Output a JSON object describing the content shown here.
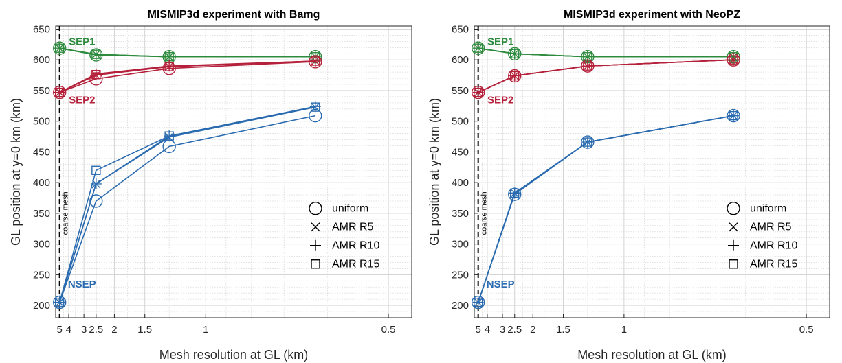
{
  "colors": {
    "green": "#2e8b3e",
    "red": "#b5203a",
    "blue": "#2a6bb0"
  },
  "chart_data": [
    {
      "type": "line",
      "title": "MISMIP3d experiment with Bamg",
      "xlabel": "Mesh resolution at GL (km)",
      "ylabel": "GL position at y=0 km (km)",
      "x_scale": "reciprocal",
      "xlim": [
        5.6,
        0.47
      ],
      "ylim": [
        180,
        655
      ],
      "xticks": [
        "5",
        "4",
        "3",
        "2.5",
        "2",
        "1.5",
        "1",
        "0.5"
      ],
      "yticks": [
        "200",
        "250",
        "300",
        "350",
        "400",
        "450",
        "500",
        "550",
        "600",
        "650"
      ],
      "grid": true,
      "vline": {
        "x": 5,
        "label": "coarse mesh"
      },
      "legend_position": "right-middle",
      "legend": [
        {
          "marker": "circle",
          "label": "uniform"
        },
        {
          "marker": "x",
          "label": "AMR R5"
        },
        {
          "marker": "plus",
          "label": "AMR R10"
        },
        {
          "marker": "square",
          "label": "AMR R15"
        }
      ],
      "x": [
        5,
        2.5,
        1.25,
        0.625
      ],
      "groups": [
        {
          "name": "SEP1",
          "color": "green",
          "label_x": 3.1,
          "label_y": 630,
          "series": [
            {
              "marker": "circle",
              "values": [
                619,
                608,
                605,
                605
              ]
            },
            {
              "marker": "x",
              "values": [
                619,
                609,
                605,
                605
              ]
            },
            {
              "marker": "plus",
              "values": [
                619,
                609,
                605,
                605
              ]
            },
            {
              "marker": "square",
              "values": [
                619,
                609,
                605,
                605
              ]
            }
          ]
        },
        {
          "name": "SEP2",
          "color": "red",
          "label_x": 3.1,
          "label_y": 535,
          "series": [
            {
              "marker": "circle",
              "values": [
                547,
                569,
                586,
                597
              ]
            },
            {
              "marker": "x",
              "values": [
                547,
                575,
                589,
                598
              ]
            },
            {
              "marker": "plus",
              "values": [
                547,
                577,
                590,
                598
              ]
            },
            {
              "marker": "square",
              "values": [
                547,
                576,
                589,
                598
              ]
            }
          ]
        },
        {
          "name": "NSEP",
          "color": "blue",
          "label_x": 3.1,
          "label_y": 235,
          "series": [
            {
              "marker": "circle",
              "values": [
                205,
                370,
                459,
                509
              ]
            },
            {
              "marker": "x",
              "values": [
                205,
                398,
                474,
                523
              ]
            },
            {
              "marker": "plus",
              "values": [
                205,
                398,
                476,
                524
              ]
            },
            {
              "marker": "square",
              "values": [
                205,
                420,
                476,
                523
              ]
            }
          ]
        }
      ]
    },
    {
      "type": "line",
      "title": "MISMIP3d experiment with NeoPZ",
      "xlabel": "Mesh resolution at GL (km)",
      "ylabel": "GL position at y=0 km (km)",
      "x_scale": "reciprocal",
      "xlim": [
        5.6,
        0.47
      ],
      "ylim": [
        180,
        655
      ],
      "xticks": [
        "5",
        "4",
        "3",
        "2.5",
        "2",
        "1.5",
        "1",
        "0.5"
      ],
      "yticks": [
        "200",
        "250",
        "300",
        "350",
        "400",
        "450",
        "500",
        "550",
        "600",
        "650"
      ],
      "grid": true,
      "vline": {
        "x": 5,
        "label": "coarse mesh"
      },
      "legend_position": "right-middle",
      "legend": [
        {
          "marker": "circle",
          "label": "uniform"
        },
        {
          "marker": "x",
          "label": "AMR R5"
        },
        {
          "marker": "plus",
          "label": "AMR R10"
        },
        {
          "marker": "square",
          "label": "AMR R15"
        }
      ],
      "x": [
        5,
        2.5,
        1.25,
        0.625
      ],
      "groups": [
        {
          "name": "SEP1",
          "color": "green",
          "label_x": 3.1,
          "label_y": 630,
          "series": [
            {
              "marker": "circle",
              "values": [
                619,
                610,
                605,
                605
              ]
            },
            {
              "marker": "x",
              "values": [
                619,
                610,
                605,
                605
              ]
            },
            {
              "marker": "plus",
              "values": [
                619,
                610,
                605,
                605
              ]
            },
            {
              "marker": "square",
              "values": [
                619,
                610,
                605,
                605
              ]
            }
          ]
        },
        {
          "name": "SEP2",
          "color": "red",
          "label_x": 3.1,
          "label_y": 535,
          "series": [
            {
              "marker": "circle",
              "values": [
                547,
                574,
                590,
                600
              ]
            },
            {
              "marker": "x",
              "values": [
                547,
                574,
                590,
                600
              ]
            },
            {
              "marker": "plus",
              "values": [
                547,
                574,
                590,
                600
              ]
            },
            {
              "marker": "square",
              "values": [
                547,
                574,
                590,
                600
              ]
            }
          ]
        },
        {
          "name": "NSEP",
          "color": "blue",
          "label_x": 3.1,
          "label_y": 235,
          "series": [
            {
              "marker": "circle",
              "values": [
                205,
                381,
                466,
                509
              ]
            },
            {
              "marker": "x",
              "values": [
                205,
                383,
                466,
                509
              ]
            },
            {
              "marker": "plus",
              "values": [
                205,
                383,
                466,
                509
              ]
            },
            {
              "marker": "square",
              "values": [
                205,
                383,
                466,
                509
              ]
            }
          ]
        }
      ]
    }
  ]
}
